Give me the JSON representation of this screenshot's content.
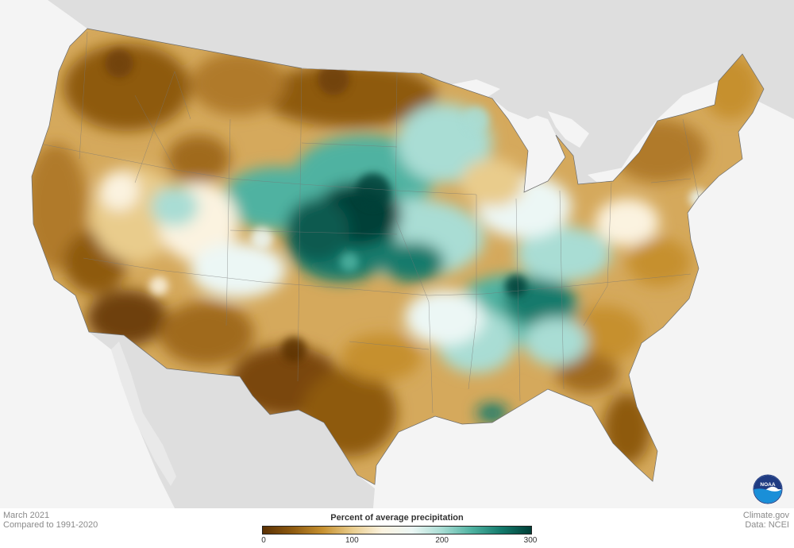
{
  "meta": {
    "date": "March 2021",
    "baseline": "Compared to 1991-2020",
    "source_site": "Climate.gov",
    "data_source": "Data: NCEI"
  },
  "legend": {
    "title": "Percent of average precipitation",
    "ticks": [
      "0",
      "100",
      "200",
      "300"
    ],
    "colors": [
      "#5b3104",
      "#8e5a10",
      "#c6902f",
      "#e9cc8c",
      "#fbf3e0",
      "#ecf7f5",
      "#a9ddd4",
      "#4fb2a1",
      "#137a6c",
      "#013f37"
    ]
  },
  "logo": {
    "icon": "noaa-logo",
    "text": "NOAA",
    "colors": [
      "#1f3b82",
      "#1a8fd8"
    ]
  },
  "map": {
    "land_color": "#dedede",
    "water_color": "#f4f4f4",
    "features": [
      "Great Lakes",
      "Gulf of Mexico",
      "Pacific Ocean",
      "Atlantic Ocean"
    ]
  }
}
